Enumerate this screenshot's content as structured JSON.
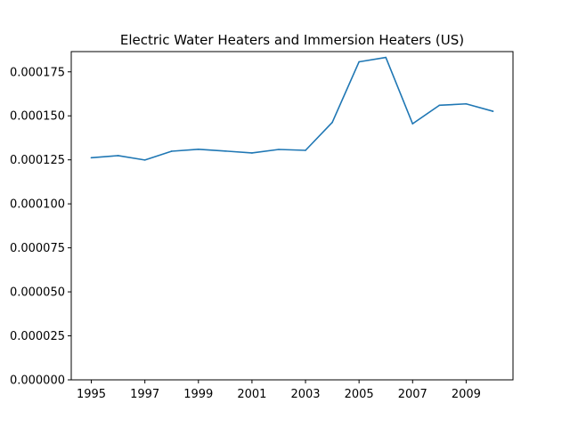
{
  "chart_data": {
    "type": "line",
    "title": "Electric Water Heaters and Immersion Heaters (US)",
    "xlabel": "",
    "ylabel": "",
    "x": [
      1995,
      1996,
      1997,
      1998,
      1999,
      2000,
      2001,
      2002,
      2003,
      2004,
      2005,
      2006,
      2007,
      2008,
      2009,
      2010
    ],
    "series": [
      {
        "name": "",
        "color": "#1f77b4",
        "values": [
          0.0001262,
          0.0001274,
          0.0001249,
          0.0001299,
          0.000131,
          0.00013,
          0.0001289,
          0.0001309,
          0.0001304,
          0.0001463,
          0.0001807,
          0.0001832,
          0.0001455,
          0.000156,
          0.0001568,
          0.0001526
        ]
      }
    ],
    "xlim": [
      1994.25,
      2010.75
    ],
    "ylim": [
      0,
      0.0001865
    ],
    "xticks": [
      1995,
      1997,
      1999,
      2001,
      2003,
      2005,
      2007,
      2009
    ],
    "xtick_labels": [
      "1995",
      "1997",
      "1999",
      "2001",
      "2003",
      "2005",
      "2007",
      "2009"
    ],
    "yticks": [
      0,
      2.5e-05,
      5e-05,
      7.5e-05,
      0.0001,
      0.000125,
      0.00015,
      0.000175
    ],
    "ytick_labels": [
      "0.000000",
      "0.000025",
      "0.000050",
      "0.000075",
      "0.000100",
      "0.000125",
      "0.000150",
      "0.000175"
    ],
    "grid": false,
    "legend": "none"
  }
}
